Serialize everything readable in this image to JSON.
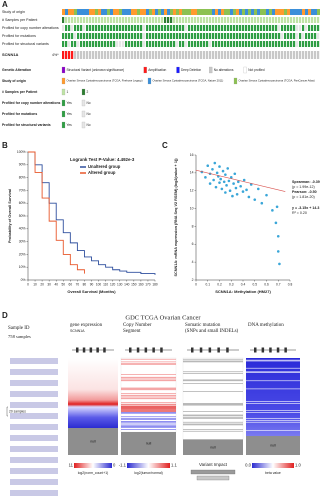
{
  "panel_labels": [
    "A",
    "B",
    "C",
    "D"
  ],
  "oncoprint": {
    "tracks": [
      "Study of origin",
      "# Samples per Patient",
      "Profiled for copy number alterations",
      "Profiled for mutations",
      "Profiled for structural variants"
    ],
    "gene": "SCNN1A",
    "gene_freq": "4%*",
    "legend": [
      {
        "title": "Genetic Alteration",
        "items": [
          "Structural Variant (unknown significance)",
          "Amplification",
          "Deep Deletion",
          "No alterations",
          "Not profiled"
        ]
      },
      {
        "title": "Study of origin",
        "items": [
          "Ovarian Serous Cystadenocarcinoma (TCGA, Firehose Legacy)",
          "Ovarian Serous Cystadenocarcinoma (TCGA, Nature 2011)",
          "Ovarian Serous Cystadenocarcinoma (TCGA, PanCancer Atlas)"
        ]
      },
      {
        "title": "# Samples per Patient",
        "items": [
          "1",
          "2"
        ]
      },
      {
        "title": "Profiled for copy number alterations",
        "items": [
          "Yes",
          "No"
        ]
      },
      {
        "title": "Profiled for mutations",
        "items": [
          "Yes",
          "No"
        ]
      },
      {
        "title": "Profiled for structural variants",
        "items": [
          "Yes",
          "No"
        ]
      }
    ]
  },
  "chart_data": [
    {
      "type": "line",
      "subtitle": "Logrank Test P-Value: 4.492e-3",
      "y_label": "Probability of Overall Survival",
      "x_label": "Overall Survival (Months)",
      "x": [
        0,
        10,
        20,
        30,
        40,
        50,
        60,
        70,
        80,
        90,
        100,
        110,
        120,
        130,
        140,
        150,
        160,
        170,
        180
      ],
      "series": [
        {
          "name": "Unaltered group",
          "color": "#2f4f9e",
          "values": [
            100,
            90,
            76,
            60,
            47,
            37,
            29,
            23,
            18,
            15,
            12,
            10,
            8,
            7,
            6,
            6,
            5,
            5,
            4
          ]
        },
        {
          "name": "Altered group",
          "color": "#e8572a",
          "values": [
            100,
            84,
            64,
            46,
            31,
            20,
            12,
            8,
            5,
            null,
            null,
            null,
            null,
            null,
            null,
            null,
            null,
            null,
            null
          ]
        }
      ],
      "xlim": [
        0,
        180
      ],
      "xticks": [
        0,
        10,
        20,
        30,
        40,
        50,
        60,
        70,
        80,
        90,
        100,
        110,
        120,
        130,
        140,
        150,
        160,
        170,
        180
      ],
      "ylim": [
        0,
        100
      ],
      "yticks": [
        {
          "value": 0,
          "label": "0%"
        },
        {
          "value": 10,
          "label": "10%"
        },
        {
          "value": 20,
          "label": "20%"
        },
        {
          "value": 30,
          "label": "30%"
        },
        {
          "value": 40,
          "label": "40%"
        },
        {
          "value": 50,
          "label": "50%"
        },
        {
          "value": 60,
          "label": "60%"
        },
        {
          "value": 70,
          "label": "70%"
        },
        {
          "value": 80,
          "label": "80%"
        },
        {
          "value": 90,
          "label": "90%"
        },
        {
          "value": 100,
          "label": "100%"
        }
      ],
      "step": true
    },
    {
      "type": "scatter",
      "y_label": "SCNN1A: mRNA expression (RNA Seq V2 RSEM) (log2(value + 1))",
      "x_label": "SCNN1A: Methylation (HM27)",
      "stats": [
        "Spearman: -0.39",
        "(p = 1.99e-12)",
        "Pearson: -0.50",
        "(p = 1.81e-20)",
        "y = -3.15x + 14.3",
        "R² = 0.20"
      ],
      "x": [
        0.05,
        0.08,
        0.1,
        0.12,
        0.12,
        0.14,
        0.15,
        0.16,
        0.17,
        0.18,
        0.19,
        0.2,
        0.2,
        0.21,
        0.22,
        0.23,
        0.24,
        0.25,
        0.25,
        0.26,
        0.27,
        0.28,
        0.29,
        0.3,
        0.31,
        0.32,
        0.33,
        0.34,
        0.35,
        0.36,
        0.38,
        0.4,
        0.41,
        0.43,
        0.45,
        0.47,
        0.5,
        0.53,
        0.56,
        0.6,
        0.65,
        0.68,
        0.7,
        0.7,
        0.71,
        0.69
      ],
      "values": [
        14.1,
        13.5,
        14.8,
        13.9,
        12.8,
        14.4,
        13.2,
        15.1,
        12.4,
        14.0,
        13.6,
        12.9,
        14.7,
        13.3,
        12.2,
        14.2,
        13.0,
        11.8,
        13.8,
        12.6,
        14.5,
        13.1,
        12.0,
        13.5,
        11.4,
        12.8,
        13.9,
        12.3,
        11.6,
        13.0,
        12.5,
        11.9,
        13.2,
        12.1,
        11.3,
        12.7,
        11.0,
        12.2,
        10.6,
        11.5,
        9.8,
        8.4,
        6.9,
        5.2,
        3.8,
        10.2
      ],
      "color": "#3aa6d8",
      "trendline": {
        "slope": -3.15,
        "intercept": 14.3,
        "color": "#d9534f"
      },
      "xlim": [
        0,
        0.8
      ],
      "xticks": [
        0,
        0.1,
        0.2,
        0.3,
        0.4,
        0.5,
        0.6,
        0.7,
        0.8
      ],
      "ylim": [
        2,
        16
      ],
      "yticks": [
        2,
        4,
        6,
        8,
        10,
        12,
        14,
        16
      ]
    }
  ],
  "xena": {
    "title": "GDC TCGA Ovarian Cancer",
    "sample_header": "Sample ID",
    "sample_count": "758 samples",
    "sample_bracket": "20 samples",
    "columns": [
      {
        "title": [
          "gene expression"
        ],
        "subtitle": "SCNN1A",
        "null": "null",
        "legend": [
          "11",
          "0"
        ],
        "unit": "log2(norm_count+1)"
      },
      {
        "title": [
          "Copy Number",
          "Segment"
        ],
        "null": "null",
        "legend": [
          "-1.1",
          "1.1"
        ],
        "unit": "log2(tumor/normal)"
      },
      {
        "title": [
          "Somatic mutation",
          "(SNPs and small INDELs)"
        ],
        "null": "null",
        "legend_title": "Variant Impact"
      },
      {
        "title": [
          "DNA methylation"
        ],
        "null": "null",
        "legend": [
          "0.0",
          "1.0"
        ],
        "unit": "beta value"
      }
    ]
  }
}
